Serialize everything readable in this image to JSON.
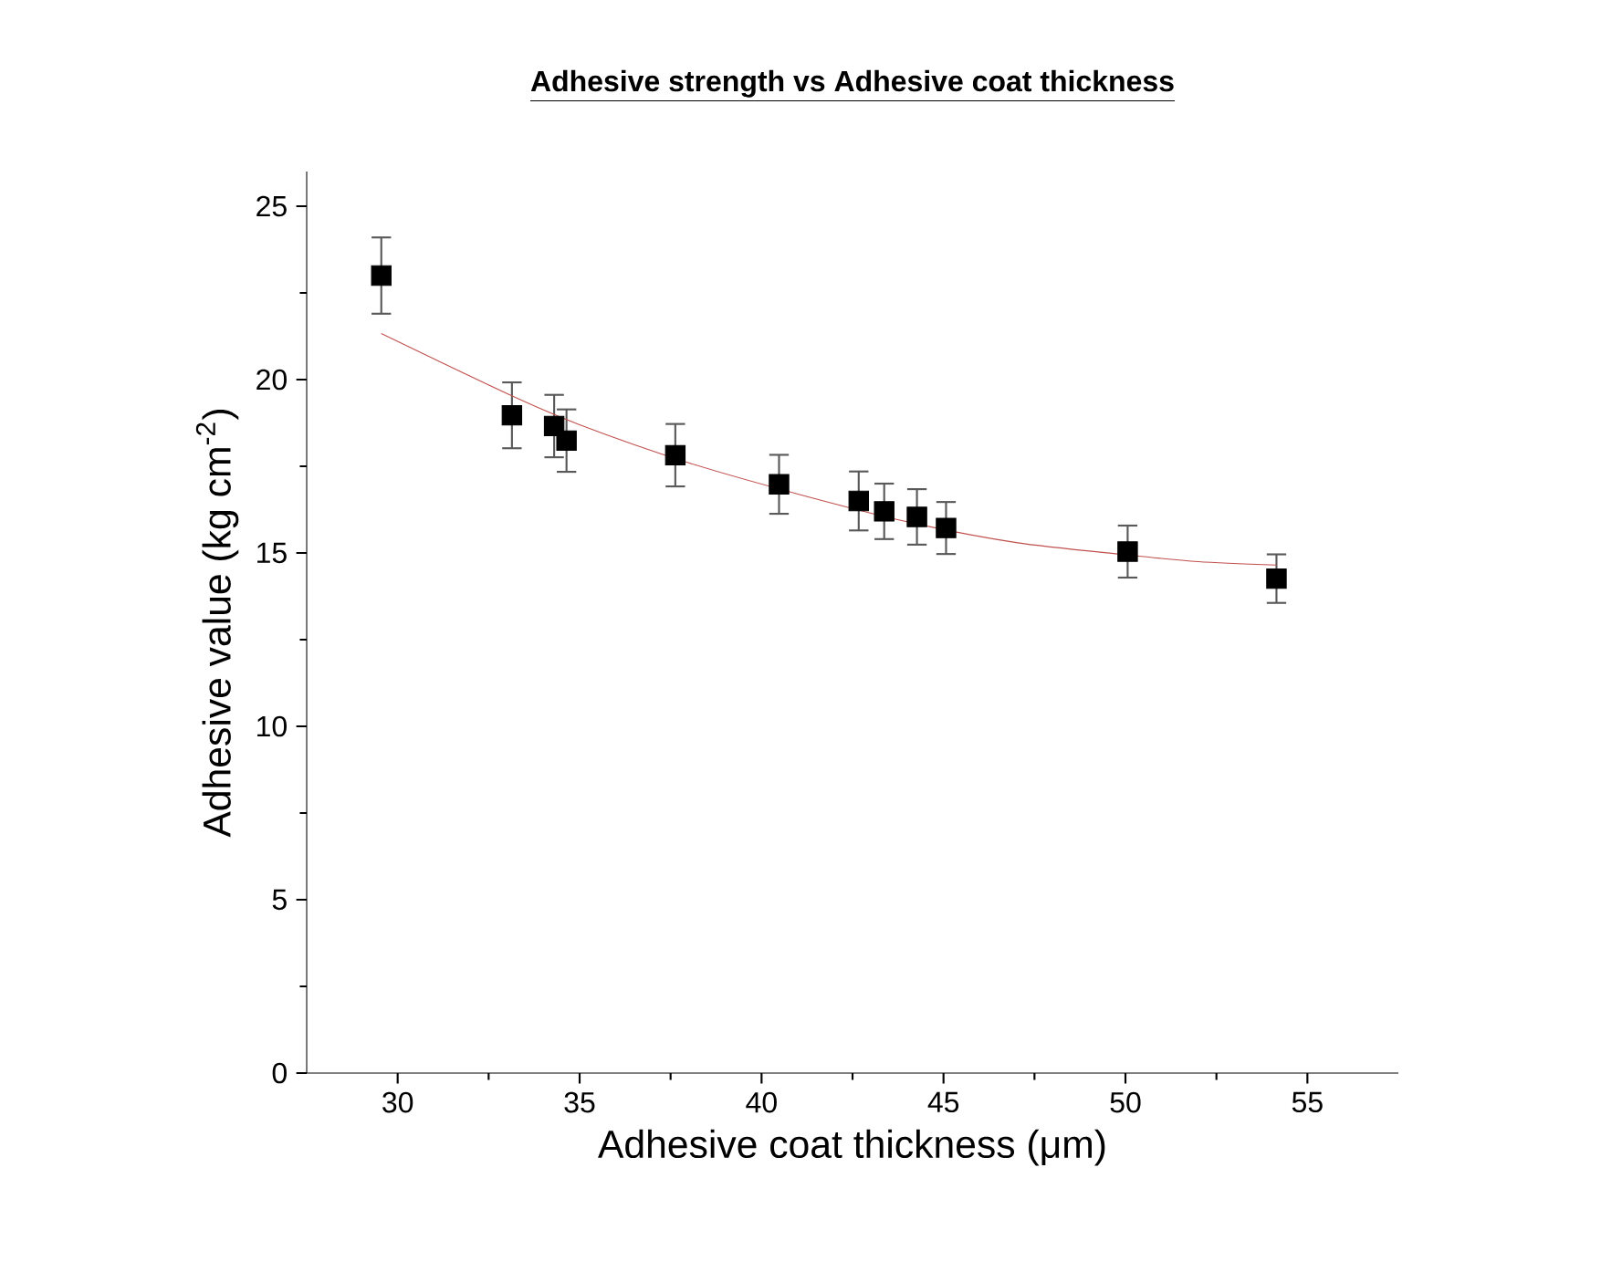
{
  "chart_data": {
    "type": "scatter",
    "title": "**Adhesive strength vs Adhesive coat thickness**",
    "xlabel": "Adhesive coat thickness (μm)",
    "ylabel": "Adhesive value (kg cm$^{-2}$)",
    "xlim": [
      27.5,
      57.5
    ],
    "ylim": [
      0,
      26
    ],
    "xticks": [
      30,
      35,
      40,
      45,
      50,
      55
    ],
    "yticks": [
      0,
      5,
      10,
      15,
      20,
      25
    ],
    "grid": false,
    "series": [
      {
        "color": "#000000",
        "marker": "square",
        "x": [
          29.55,
          33.14,
          34.3,
          34.64,
          37.63,
          40.48,
          42.67,
          43.37,
          44.27,
          45.07,
          50.06,
          54.15
        ],
        "values": [
          23.0,
          18.97,
          18.66,
          18.24,
          17.82,
          16.98,
          16.5,
          16.2,
          16.04,
          15.72,
          15.04,
          14.26
        ],
        "errors": [
          1.1,
          0.95,
          0.9,
          0.9,
          0.9,
          0.85,
          0.85,
          0.8,
          0.8,
          0.75,
          0.75,
          0.7
        ]
      },
      {
        "type": "line",
        "color": "#c0504d",
        "marker": "none",
        "line_style": "solid",
        "x": [
          29.55,
          33,
          35,
          38,
          41,
          44,
          47,
          50,
          52,
          54.15
        ],
        "values": [
          21.33,
          19.6,
          18.7,
          17.6,
          16.7,
          15.9,
          15.3,
          14.95,
          14.75,
          14.65
        ]
      }
    ]
  }
}
